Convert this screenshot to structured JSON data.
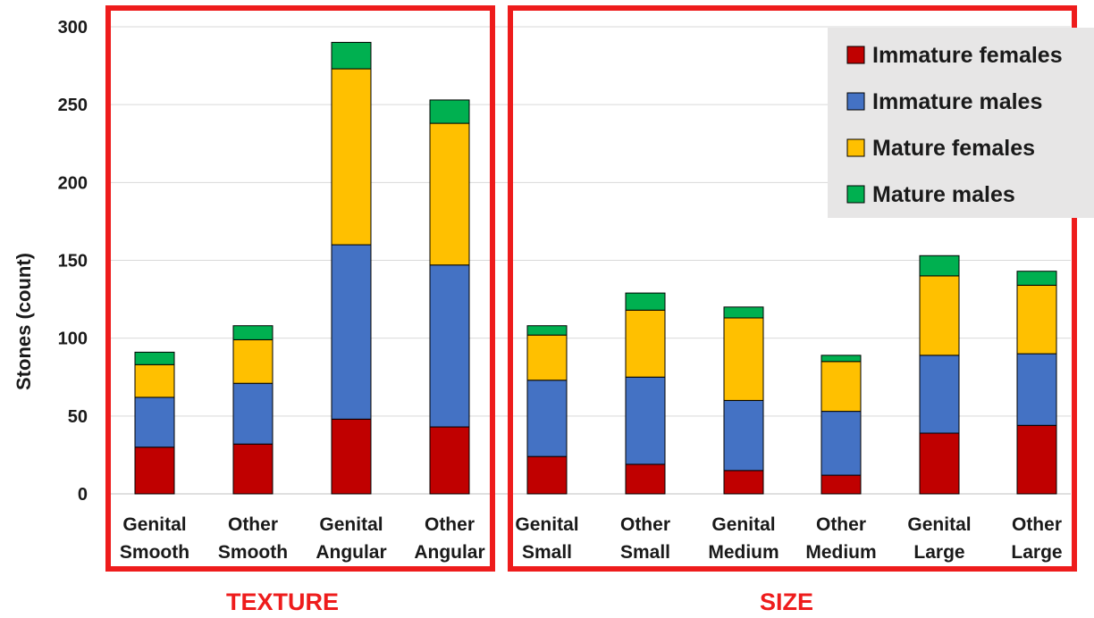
{
  "chart_data": {
    "type": "bar",
    "stacked": true,
    "ylabel": "Stones (count)",
    "ylim": [
      0,
      300
    ],
    "yticks": [
      0,
      50,
      100,
      150,
      200,
      250,
      300
    ],
    "grid": true,
    "legend_position": "top-right",
    "categories": [
      [
        "Genital",
        "Smooth"
      ],
      [
        "Other",
        "Smooth"
      ],
      [
        "Genital",
        "Angular"
      ],
      [
        "Other",
        "Angular"
      ],
      [
        "Genital",
        "Small"
      ],
      [
        "Other",
        "Small"
      ],
      [
        "Genital",
        "Medium"
      ],
      [
        "Other",
        "Medium"
      ],
      [
        "Genital",
        "Large"
      ],
      [
        "Other",
        "Large"
      ]
    ],
    "groups": [
      {
        "label": "TEXTURE",
        "categories": [
          0,
          1,
          2,
          3
        ]
      },
      {
        "label": "SIZE",
        "categories": [
          4,
          5,
          6,
          7,
          8,
          9
        ]
      }
    ],
    "series": [
      {
        "name": "Immature females",
        "color": "#c00000",
        "values": [
          30,
          32,
          48,
          43,
          24,
          19,
          15,
          12,
          39,
          44
        ]
      },
      {
        "name": "Immature males",
        "color": "#4472c4",
        "values": [
          32,
          39,
          112,
          104,
          49,
          56,
          45,
          41,
          50,
          46
        ]
      },
      {
        "name": "Mature females",
        "color": "#ffc000",
        "values": [
          21,
          28,
          113,
          91,
          29,
          43,
          53,
          32,
          51,
          44
        ]
      },
      {
        "name": "Mature males",
        "color": "#00b050",
        "values": [
          8,
          9,
          17,
          15,
          6,
          11,
          7,
          4,
          13,
          9
        ]
      }
    ]
  },
  "colors": {
    "group_frame": "#ee1c1c",
    "legend_bg": "#e7e6e6",
    "grid": "#d9d9d9"
  }
}
